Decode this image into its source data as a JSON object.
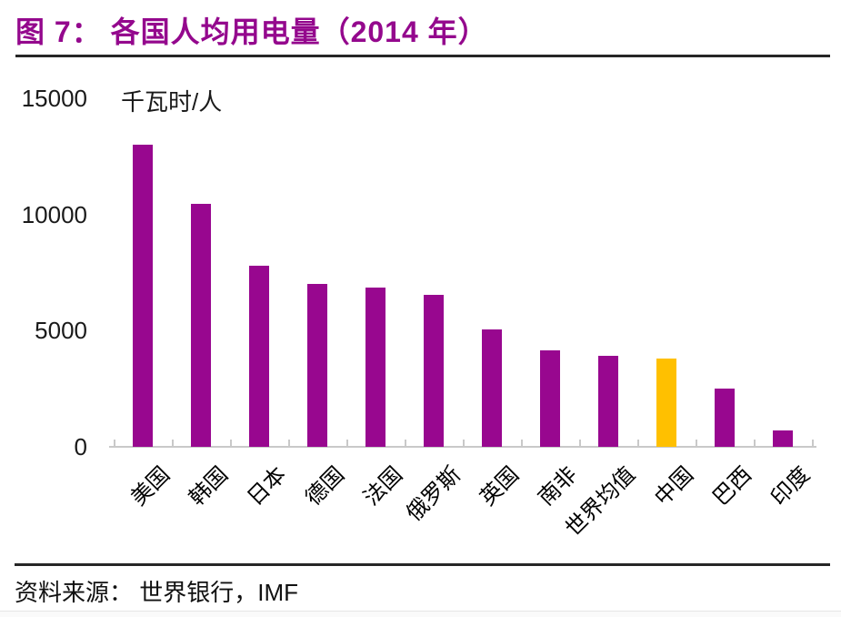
{
  "header": {
    "title": "图 7： 各国人均用电量（2014 年）"
  },
  "footer": {
    "source": "资料来源： 世界银行，IMF"
  },
  "chart_data": {
    "type": "bar",
    "title": "图 7： 各国人均用电量（2014 年）",
    "ylabel_unit": "千瓦时/人",
    "xlabel": "",
    "categories": [
      "美国",
      "韩国",
      "日本",
      "德国",
      "法国",
      "俄罗斯",
      "英国",
      "南非",
      "世界均值",
      "中国",
      "巴西",
      "印度"
    ],
    "values": [
      13000,
      10450,
      7800,
      7000,
      6850,
      6550,
      5050,
      4150,
      3900,
      3800,
      2500,
      700
    ],
    "highlight_category": "中国",
    "colors": {
      "bar": "#98078F",
      "highlight_bar": "#FFC000",
      "title": "#94088D",
      "axis_line": "#c9c9c9",
      "rule": "#262626"
    },
    "ylim": [
      0,
      15000
    ],
    "yticks": [
      0,
      5000,
      10000,
      15000
    ],
    "grid": false,
    "legend": null,
    "source": "资料来源： 世界银行，IMF"
  }
}
